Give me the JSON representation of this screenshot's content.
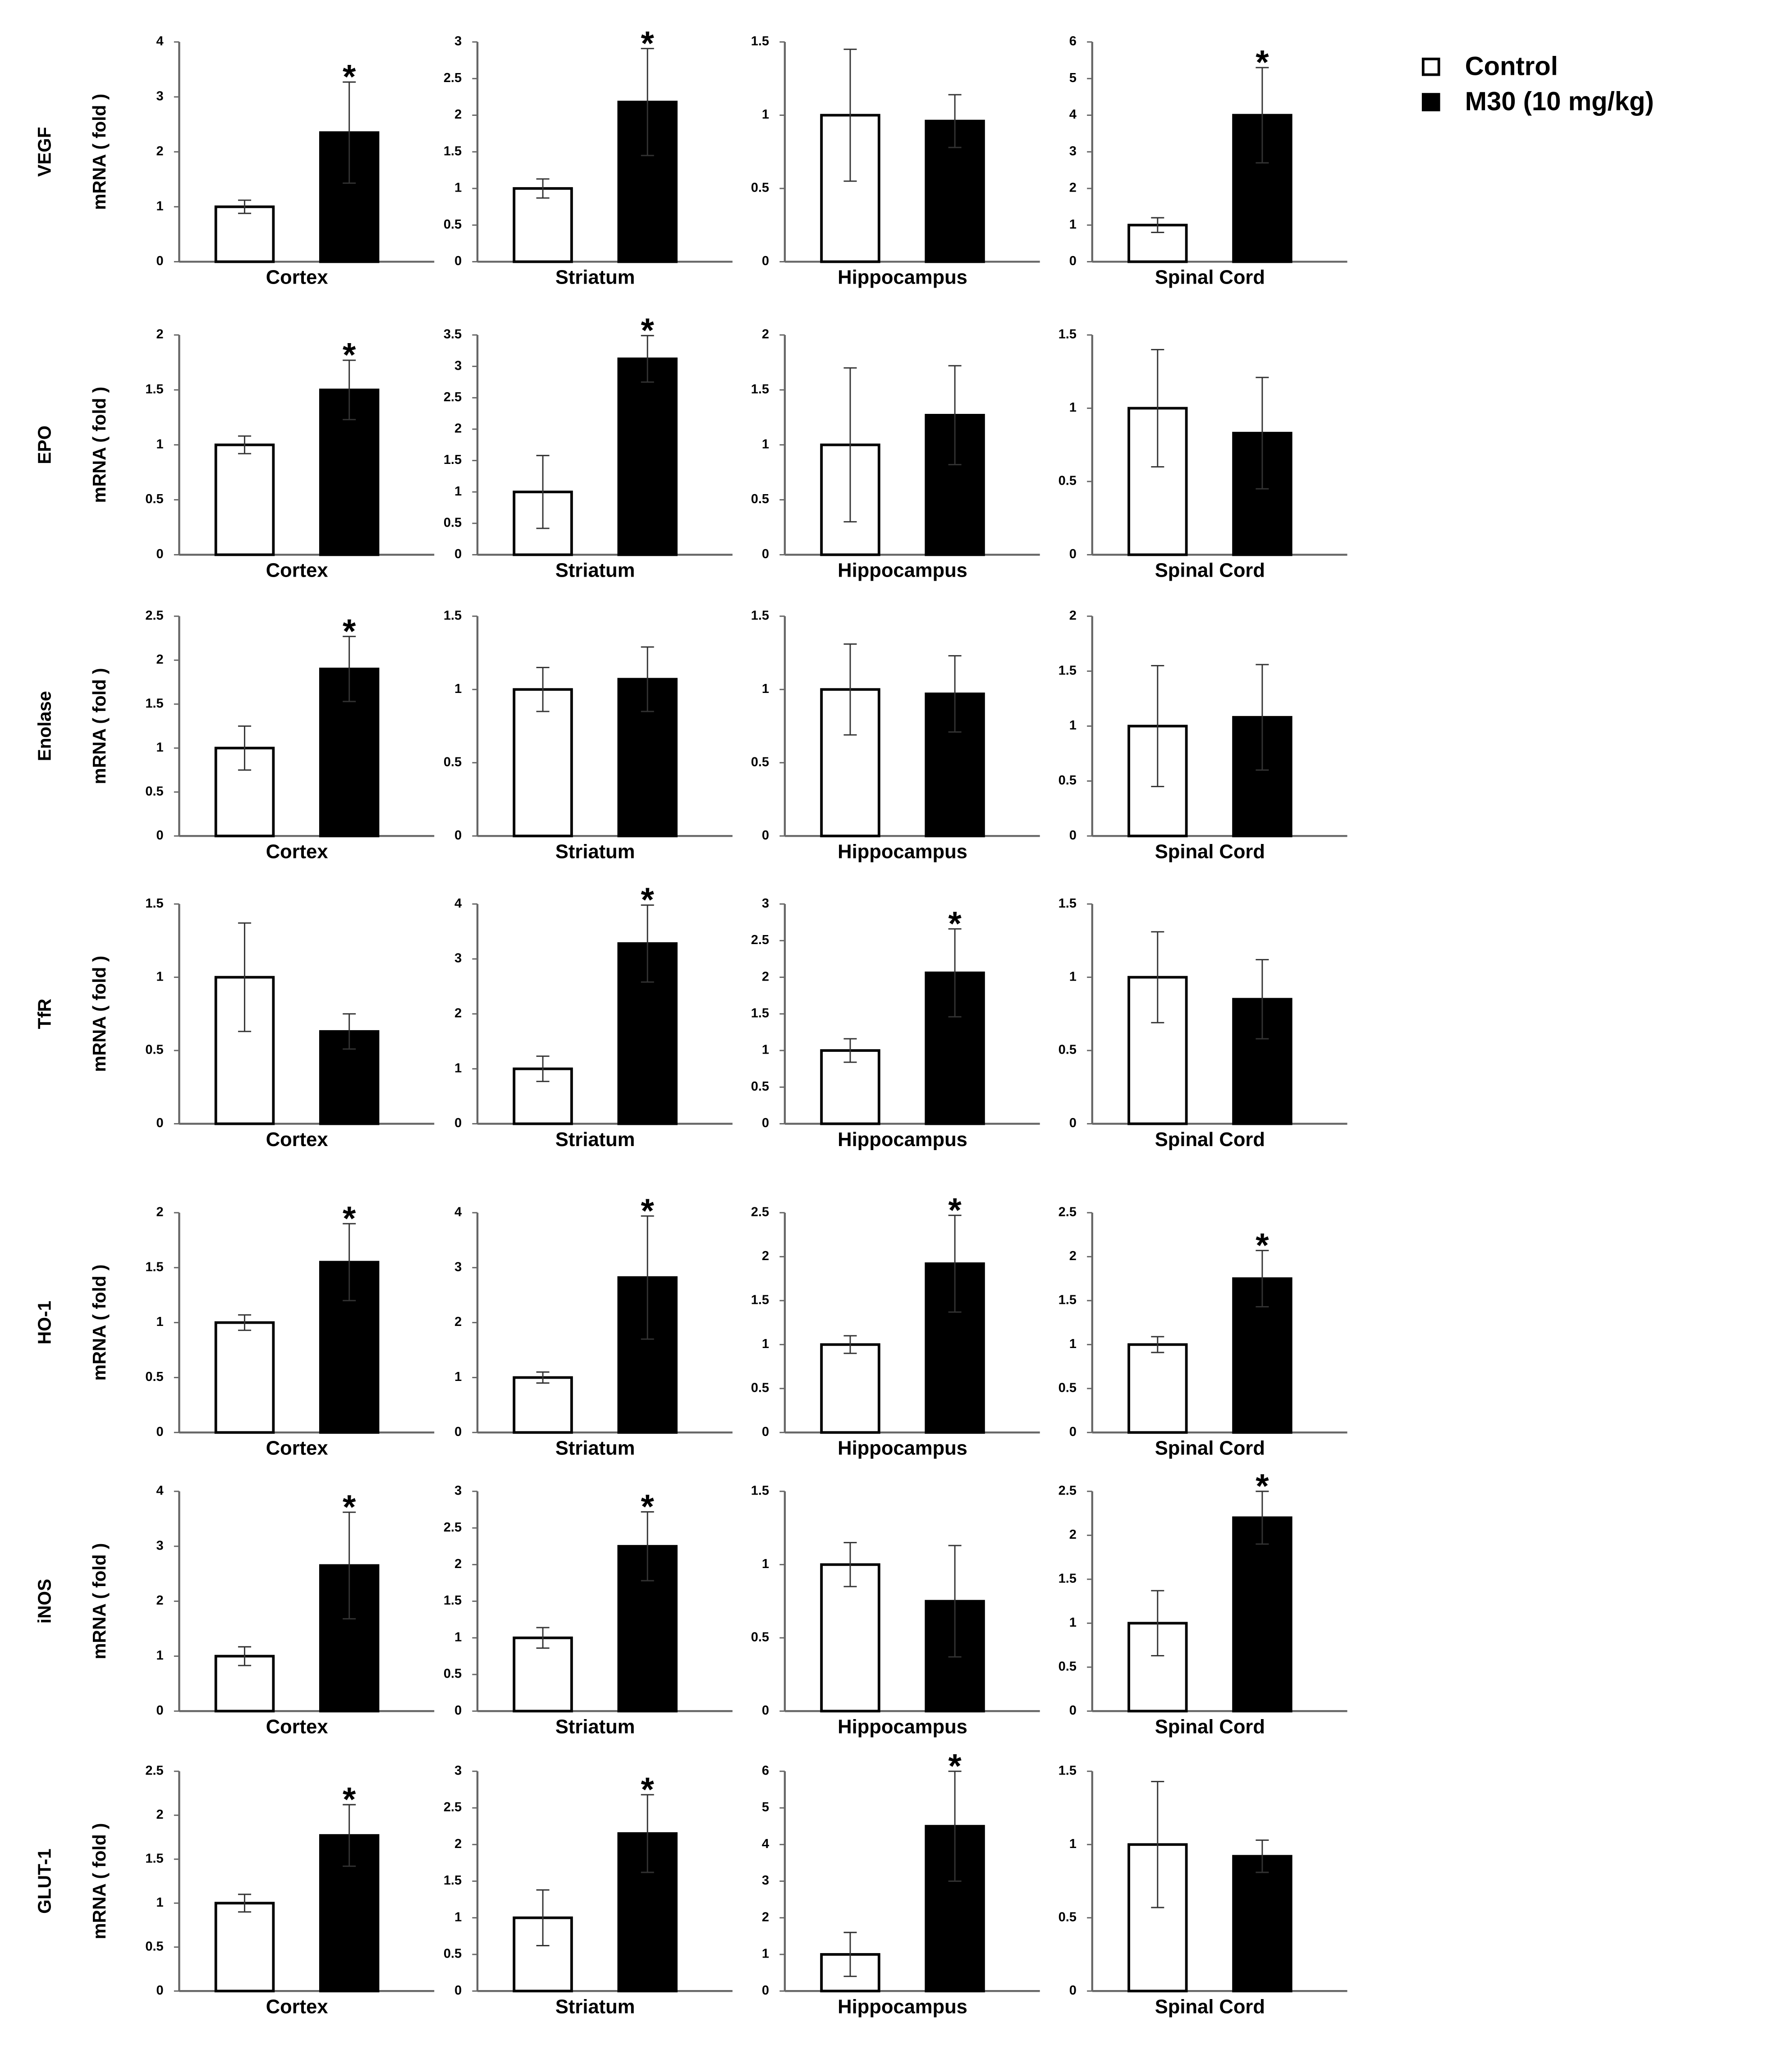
{
  "legend": [
    {
      "name": "Control",
      "color": "#ffffff"
    },
    {
      "name": "M30 (10 mg/kg)",
      "color": "#000000"
    }
  ],
  "chart_data": [
    {
      "type": "bar",
      "row_label": "VEGF",
      "ylabel": "mRNA ( fold )",
      "xlabel": "Cortex",
      "values": [
        1,
        2.35
      ],
      "errors": [
        0.12,
        0.92
      ],
      "markers": [
        null,
        "*"
      ],
      "ylim": [
        0,
        4
      ],
      "yticks": [
        0,
        1,
        2,
        3,
        4
      ]
    },
    {
      "type": "bar",
      "xlabel": "Striatum",
      "values": [
        1,
        2.18
      ],
      "errors": [
        0.13,
        0.73
      ],
      "markers": [
        null,
        "*"
      ],
      "ylim": [
        0,
        3
      ],
      "yticks": [
        0,
        0.5,
        1,
        1.5,
        2,
        2.5,
        3
      ]
    },
    {
      "type": "bar",
      "xlabel": "Hippocampus",
      "values": [
        1,
        0.96
      ],
      "errors": [
        0.45,
        0.18
      ],
      "markers": [
        null,
        null
      ],
      "ylim": [
        0,
        1.5
      ],
      "yticks": [
        0,
        0.5,
        1,
        1.5
      ]
    },
    {
      "type": "bar",
      "xlabel": "Spinal Cord",
      "values": [
        1,
        4.0
      ],
      "errors": [
        0.2,
        1.3
      ],
      "markers": [
        null,
        "*"
      ],
      "ylim": [
        0,
        6
      ],
      "yticks": [
        0,
        1,
        2,
        3,
        4,
        5,
        6
      ]
    },
    {
      "type": "bar",
      "row_label": "EPO",
      "ylabel": "mRNA ( fold )",
      "xlabel": "Cortex",
      "values": [
        1,
        1.5
      ],
      "errors": [
        0.08,
        0.27
      ],
      "markers": [
        null,
        "*"
      ],
      "ylim": [
        0,
        2
      ],
      "yticks": [
        0,
        0.5,
        1,
        1.5,
        2
      ]
    },
    {
      "type": "bar",
      "xlabel": "Striatum",
      "values": [
        1,
        3.12
      ],
      "errors": [
        0.58,
        0.37
      ],
      "markers": [
        null,
        "*"
      ],
      "ylim": [
        0,
        3.5
      ],
      "yticks": [
        0,
        0.5,
        1,
        1.5,
        2,
        2.5,
        3,
        3.5
      ]
    },
    {
      "type": "bar",
      "xlabel": "Hippocampus",
      "values": [
        1,
        1.27
      ],
      "errors": [
        0.7,
        0.45
      ],
      "markers": [
        null,
        null
      ],
      "ylim": [
        0,
        2
      ],
      "yticks": [
        0,
        0.5,
        1,
        1.5,
        2
      ]
    },
    {
      "type": "bar",
      "xlabel": "Spinal Cord",
      "values": [
        1,
        0.83
      ],
      "errors": [
        0.4,
        0.38
      ],
      "markers": [
        null,
        null
      ],
      "ylim": [
        0,
        1.5
      ],
      "yticks": [
        0,
        0.5,
        1,
        1.5
      ]
    },
    {
      "type": "bar",
      "row_label": "Enolase",
      "ylabel": "mRNA ( fold )",
      "xlabel": "Cortex",
      "values": [
        1,
        1.9
      ],
      "errors": [
        0.25,
        0.37
      ],
      "markers": [
        null,
        "*"
      ],
      "ylim": [
        0,
        2.5
      ],
      "yticks": [
        0,
        0.5,
        1,
        1.5,
        2,
        2.5
      ]
    },
    {
      "type": "bar",
      "xlabel": "Striatum",
      "values": [
        1,
        1.07
      ],
      "errors": [
        0.15,
        0.22
      ],
      "markers": [
        null,
        null
      ],
      "ylim": [
        0,
        1.5
      ],
      "yticks": [
        0,
        0.5,
        1,
        1.5
      ]
    },
    {
      "type": "bar",
      "xlabel": "Hippocampus",
      "values": [
        1,
        0.97
      ],
      "errors": [
        0.31,
        0.26
      ],
      "markers": [
        null,
        null
      ],
      "ylim": [
        0,
        1.5
      ],
      "yticks": [
        0,
        0.5,
        1,
        1.5
      ]
    },
    {
      "type": "bar",
      "xlabel": "Spinal Cord",
      "values": [
        1,
        1.08
      ],
      "errors": [
        0.55,
        0.48
      ],
      "markers": [
        null,
        null
      ],
      "ylim": [
        0,
        2
      ],
      "yticks": [
        0,
        0.5,
        1,
        1.5,
        2
      ]
    },
    {
      "type": "bar",
      "row_label": "TfR",
      "ylabel": "mRNA ( fold )",
      "xlabel": "Cortex",
      "values": [
        1,
        0.63
      ],
      "errors": [
        0.37,
        0.12
      ],
      "markers": [
        null,
        null
      ],
      "ylim": [
        0,
        1.5
      ],
      "yticks": [
        0,
        0.5,
        1,
        1.5
      ]
    },
    {
      "type": "bar",
      "xlabel": "Striatum",
      "values": [
        1,
        3.28
      ],
      "errors": [
        0.23,
        0.7
      ],
      "markers": [
        null,
        "*"
      ],
      "ylim": [
        0,
        4
      ],
      "yticks": [
        0,
        1,
        2,
        3,
        4
      ]
    },
    {
      "type": "bar",
      "xlabel": "Hippocampus",
      "values": [
        1,
        2.06
      ],
      "errors": [
        0.16,
        0.6
      ],
      "markers": [
        null,
        "*"
      ],
      "ylim": [
        0,
        3
      ],
      "yticks": [
        0,
        0.5,
        1,
        1.5,
        2,
        2.5,
        3
      ]
    },
    {
      "type": "bar",
      "xlabel": "Spinal Cord",
      "values": [
        1,
        0.85
      ],
      "errors": [
        0.31,
        0.27
      ],
      "markers": [
        null,
        null
      ],
      "ylim": [
        0,
        1.5
      ],
      "yticks": [
        0,
        0.5,
        1,
        1.5
      ]
    },
    {
      "type": "bar",
      "row_label": "HO-1",
      "ylabel": "mRNA ( fold )",
      "xlabel": "Cortex",
      "values": [
        1,
        1.55
      ],
      "errors": [
        0.07,
        0.35
      ],
      "markers": [
        null,
        "*"
      ],
      "ylim": [
        0,
        2
      ],
      "yticks": [
        0,
        0.5,
        1,
        1.5,
        2
      ]
    },
    {
      "type": "bar",
      "xlabel": "Striatum",
      "values": [
        1,
        2.82
      ],
      "errors": [
        0.1,
        1.12
      ],
      "markers": [
        null,
        "*"
      ],
      "ylim": [
        0,
        4
      ],
      "yticks": [
        0,
        1,
        2,
        3,
        4
      ]
    },
    {
      "type": "bar",
      "xlabel": "Hippocampus",
      "values": [
        1,
        1.92
      ],
      "errors": [
        0.1,
        0.55
      ],
      "markers": [
        null,
        "*"
      ],
      "ylim": [
        0,
        2.5
      ],
      "yticks": [
        0,
        0.5,
        1,
        1.5,
        2,
        2.5
      ]
    },
    {
      "type": "bar",
      "xlabel": "Spinal Cord",
      "values": [
        1,
        1.75
      ],
      "errors": [
        0.09,
        0.32
      ],
      "markers": [
        null,
        "*"
      ],
      "ylim": [
        0,
        2.5
      ],
      "yticks": [
        0,
        0.5,
        1,
        1.5,
        2,
        2.5
      ]
    },
    {
      "type": "bar",
      "row_label": "iNOS",
      "ylabel": "mRNA ( fold )",
      "xlabel": "Cortex",
      "values": [
        1,
        2.65
      ],
      "errors": [
        0.17,
        0.97
      ],
      "markers": [
        null,
        "*"
      ],
      "ylim": [
        0,
        4
      ],
      "yticks": [
        0,
        1,
        2,
        3,
        4
      ]
    },
    {
      "type": "bar",
      "xlabel": "Striatum",
      "values": [
        1,
        2.25
      ],
      "errors": [
        0.14,
        0.47
      ],
      "markers": [
        null,
        "*"
      ],
      "ylim": [
        0,
        3
      ],
      "yticks": [
        0,
        0.5,
        1,
        1.5,
        2,
        2.5,
        3
      ]
    },
    {
      "type": "bar",
      "xlabel": "Hippocampus",
      "values": [
        1,
        0.75
      ],
      "errors": [
        0.15,
        0.38
      ],
      "markers": [
        null,
        null
      ],
      "ylim": [
        0,
        1.5
      ],
      "yticks": [
        0,
        0.5,
        1,
        1.5
      ]
    },
    {
      "type": "bar",
      "xlabel": "Spinal Cord",
      "values": [
        1,
        2.2
      ],
      "errors": [
        0.37,
        0.3
      ],
      "markers": [
        null,
        "*"
      ],
      "ylim": [
        0,
        2.5
      ],
      "yticks": [
        0,
        0.5,
        1,
        1.5,
        2,
        2.5
      ]
    },
    {
      "type": "bar",
      "row_label": "GLUT-1",
      "ylabel": "mRNA ( fold )",
      "xlabel": "Cortex",
      "values": [
        1,
        1.77
      ],
      "errors": [
        0.1,
        0.35
      ],
      "markers": [
        null,
        "*"
      ],
      "ylim": [
        0,
        2.5
      ],
      "yticks": [
        0,
        0.5,
        1,
        1.5,
        2,
        2.5
      ]
    },
    {
      "type": "bar",
      "xlabel": "Striatum",
      "values": [
        1,
        2.15
      ],
      "errors": [
        0.38,
        0.53
      ],
      "markers": [
        null,
        "*"
      ],
      "ylim": [
        0,
        3
      ],
      "yticks": [
        0,
        0.5,
        1,
        1.5,
        2,
        2.5,
        3
      ]
    },
    {
      "type": "bar",
      "xlabel": "Hippocampus",
      "values": [
        1,
        4.5
      ],
      "errors": [
        0.6,
        1.5
      ],
      "markers": [
        null,
        "*"
      ],
      "ylim": [
        0,
        6
      ],
      "yticks": [
        0,
        1,
        2,
        3,
        4,
        5,
        6
      ]
    },
    {
      "type": "bar",
      "xlabel": "Spinal Cord",
      "values": [
        1,
        0.92
      ],
      "errors": [
        0.43,
        0.11
      ],
      "markers": [
        null,
        null
      ],
      "ylim": [
        0,
        1.5
      ],
      "yticks": [
        0,
        0.5,
        1,
        1.5
      ]
    }
  ]
}
